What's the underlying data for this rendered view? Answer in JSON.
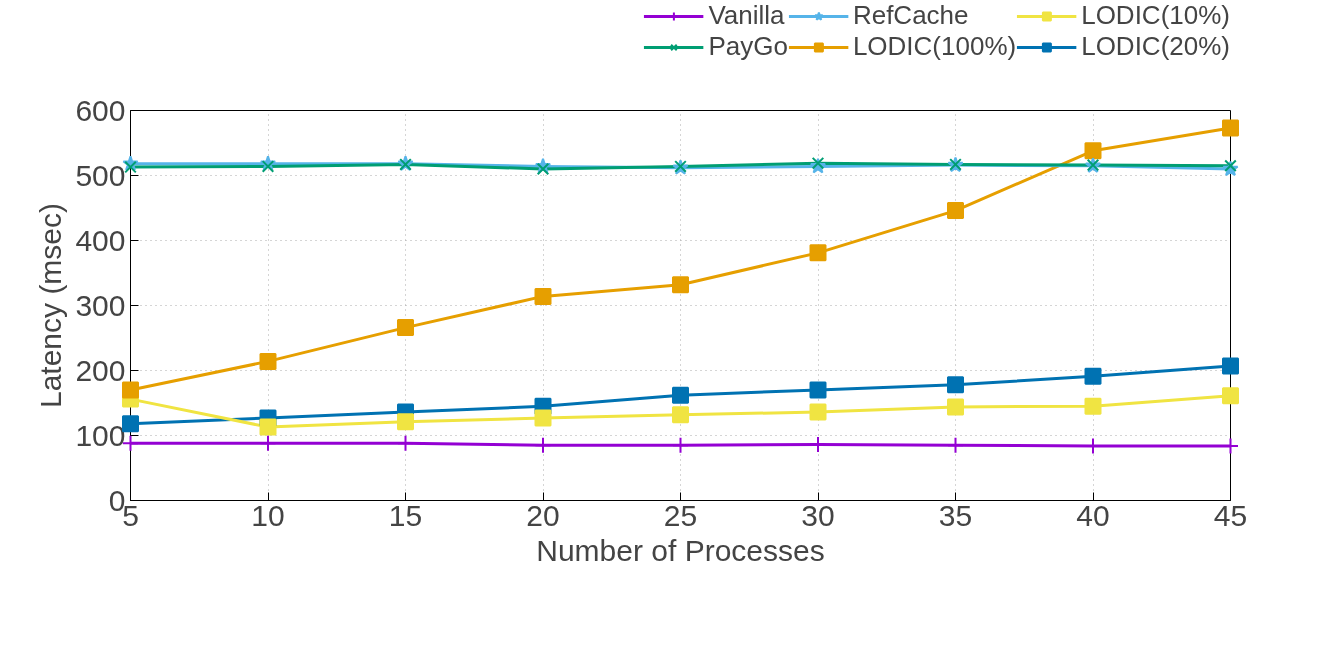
{
  "chart_data": {
    "type": "line",
    "xlabel": "Number of Processes",
    "ylabel": "Latency (msec)",
    "x": [
      5,
      10,
      15,
      20,
      25,
      30,
      35,
      40,
      45
    ],
    "xlim": [
      5,
      45
    ],
    "xticks": [
      5,
      10,
      15,
      20,
      25,
      30,
      35,
      40,
      45
    ],
    "ylim": [
      0,
      600
    ],
    "yticks": [
      0,
      100,
      200,
      300,
      400,
      500,
      600
    ],
    "grid": true,
    "legend": "top",
    "series": [
      {
        "name": "Vanilla",
        "color": "#9400d3",
        "marker": "cross",
        "values": [
          88,
          88,
          88,
          85,
          85,
          86,
          85,
          84,
          84
        ]
      },
      {
        "name": "PayGo",
        "color": "#009e73",
        "marker": "x",
        "values": [
          513,
          514,
          517,
          510,
          514,
          519,
          517,
          516,
          515
        ]
      },
      {
        "name": "RefCache",
        "color": "#56b4e9",
        "marker": "star",
        "values": [
          518,
          518,
          518,
          514,
          512,
          514,
          516,
          515,
          510
        ]
      },
      {
        "name": "LODIC(100%)",
        "color": "#e69f00",
        "marker": "square",
        "values": [
          170,
          214,
          266,
          314,
          332,
          381,
          446,
          538,
          573
        ]
      },
      {
        "name": "LODIC(10%)",
        "color": "#f0e442",
        "marker": "square",
        "values": [
          156,
          113,
          121,
          127,
          132,
          136,
          144,
          145,
          161
        ]
      },
      {
        "name": "LODIC(20%)",
        "color": "#0072b2",
        "marker": "square",
        "values": [
          118,
          127,
          136,
          145,
          162,
          170,
          178,
          191,
          207
        ]
      }
    ]
  }
}
